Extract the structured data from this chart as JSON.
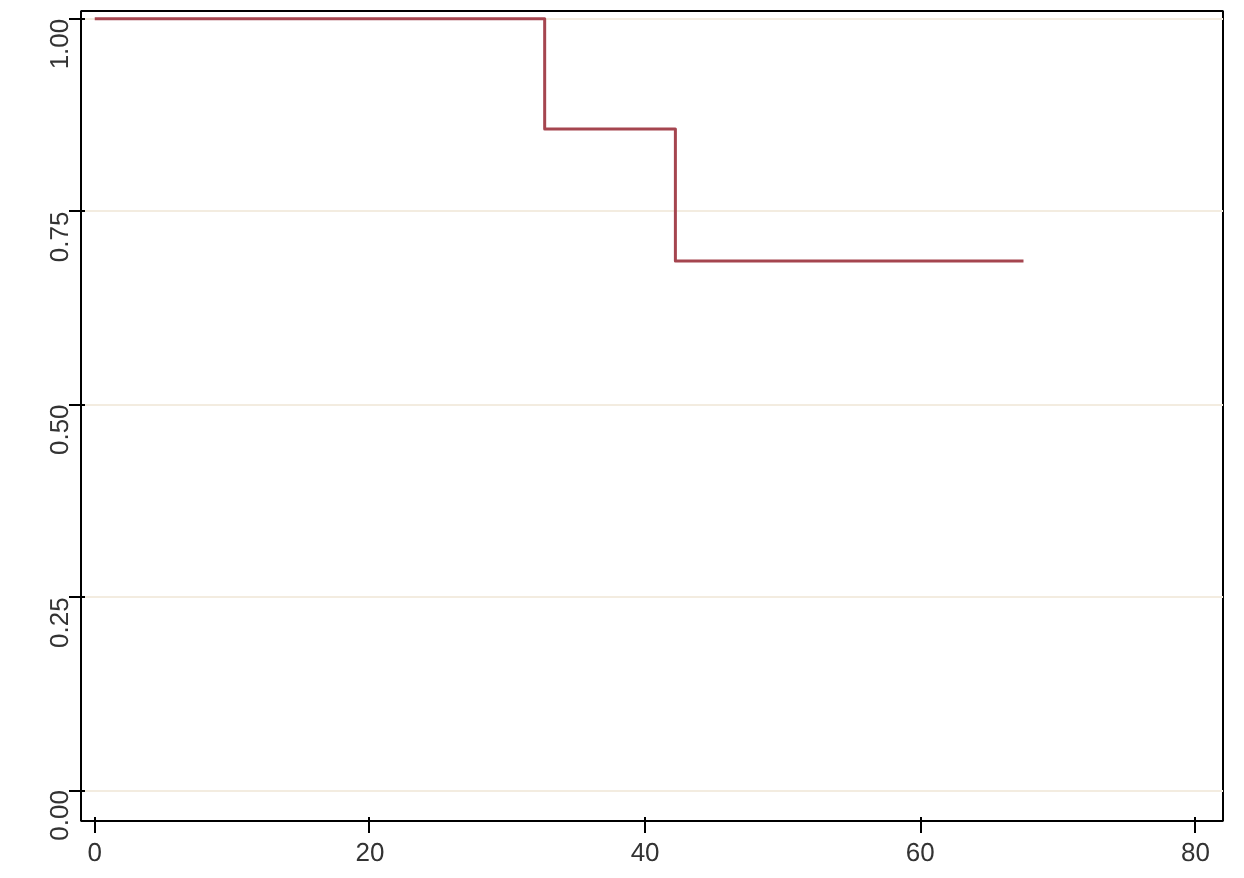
{
  "chart_data": {
    "type": "step",
    "x": [
      0,
      32.7,
      42.2,
      67.5
    ],
    "series": [
      {
        "color": "#a5454f",
        "values": [
          1.0,
          0.857,
          0.686,
          0.686
        ]
      }
    ],
    "xlim": [
      -1,
      82
    ],
    "ylim": [
      -0.04,
      1.01
    ],
    "xticks": [
      0,
      20,
      40,
      60,
      80
    ],
    "yticks": [
      {
        "value": 0,
        "label": "0.00"
      },
      {
        "value": 0.25,
        "label": "0.25"
      },
      {
        "value": 0.5,
        "label": "0.50"
      },
      {
        "value": 0.75,
        "label": "0.75"
      },
      {
        "value": 1,
        "label": "1.00"
      }
    ],
    "grid": "y"
  }
}
